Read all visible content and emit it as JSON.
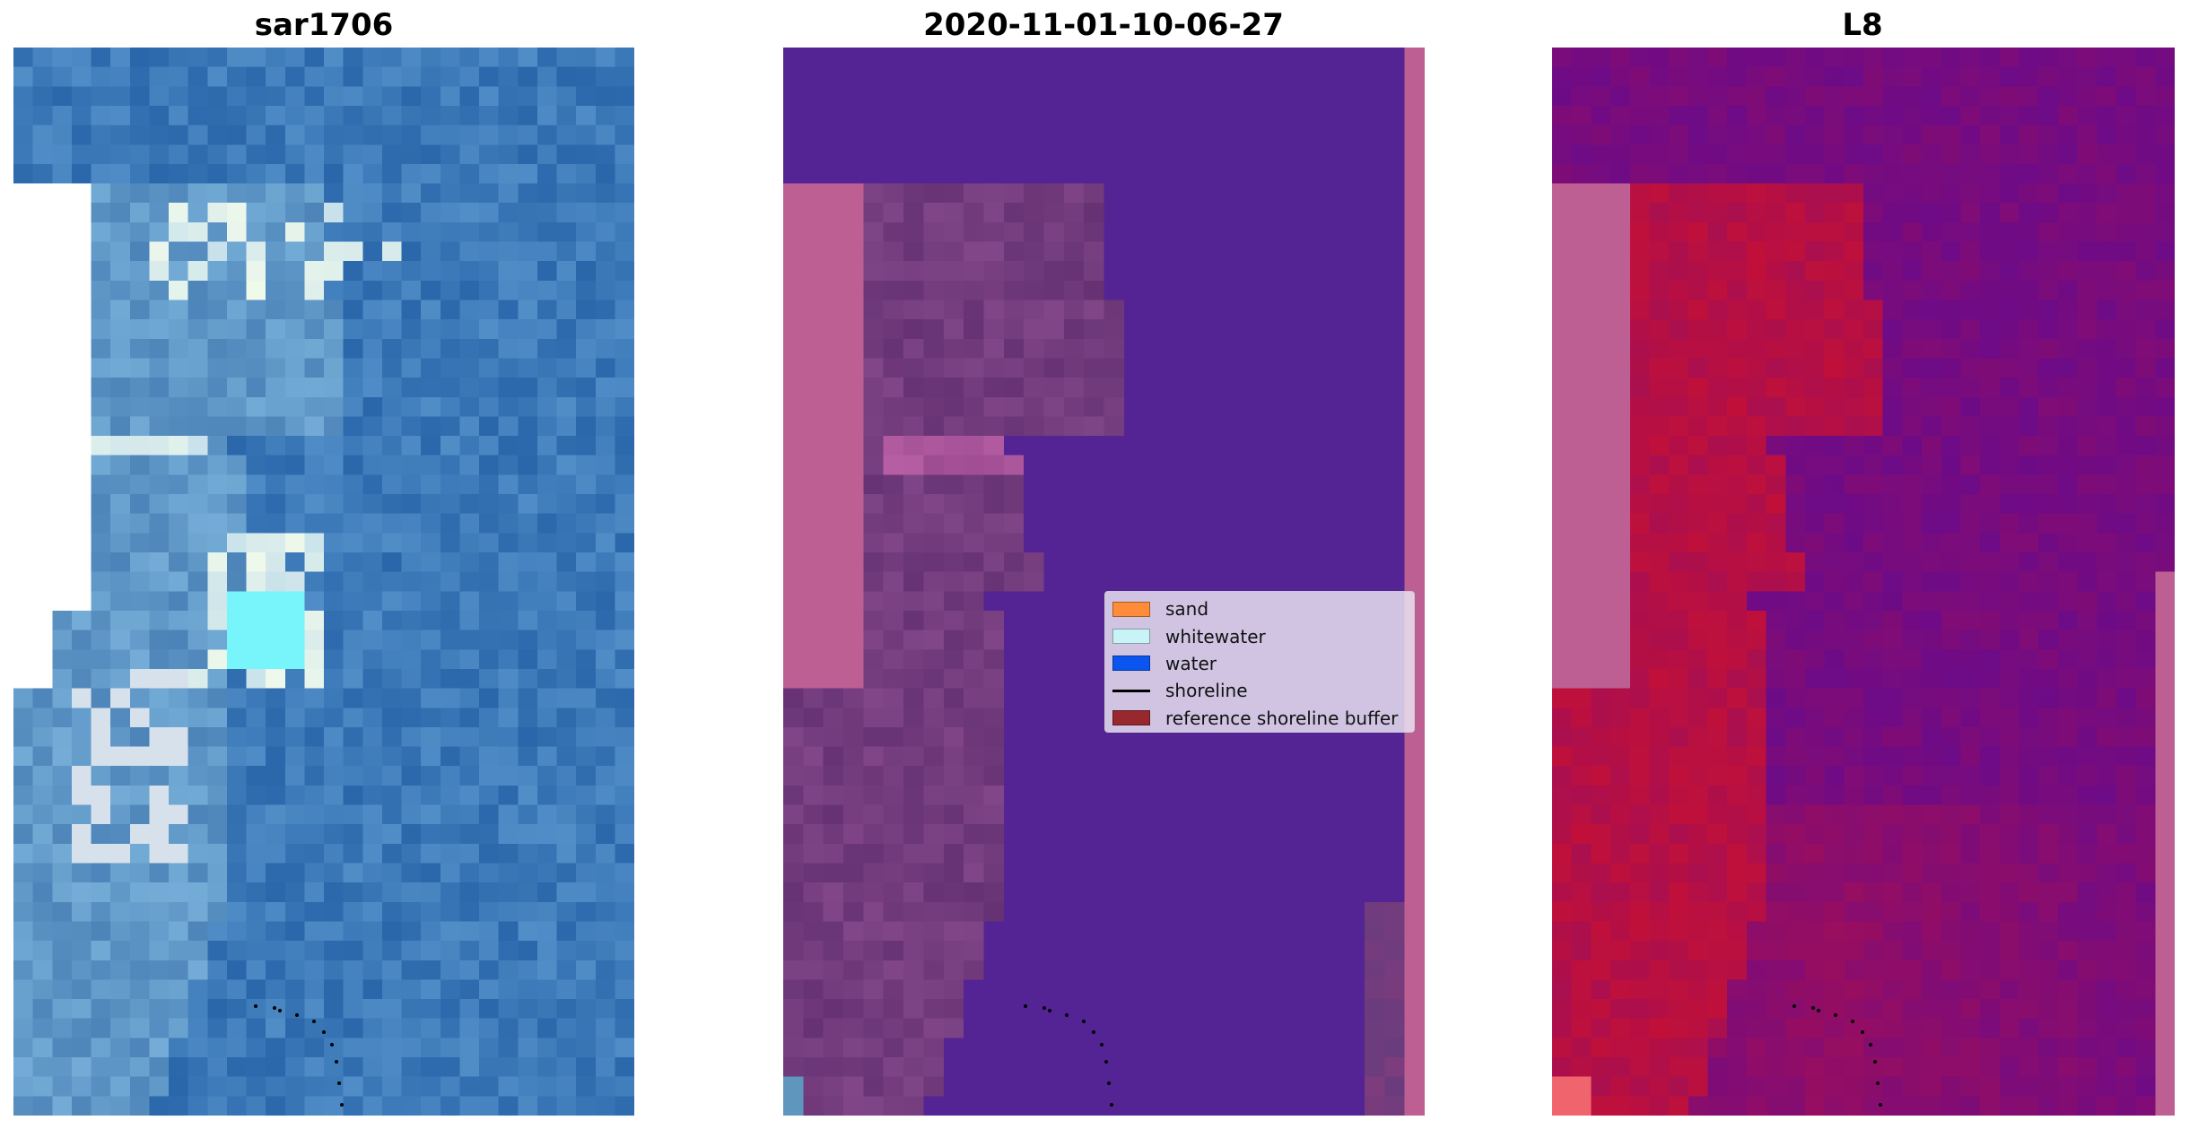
{
  "panels": [
    {
      "title": "sar1706"
    },
    {
      "title": "2020-11-01-10-06-27"
    },
    {
      "title": "L8"
    }
  ],
  "legend": {
    "items": [
      {
        "label": "sand",
        "color": "#ff8c3a",
        "kind": "patch"
      },
      {
        "label": "whitewater",
        "color": "#c9f4f7",
        "kind": "patch"
      },
      {
        "label": "water",
        "color": "#0a55ef",
        "kind": "patch"
      },
      {
        "label": "shoreline",
        "color": "#000000",
        "kind": "line"
      },
      {
        "label": "reference shoreline buffer",
        "color": "#96282e",
        "kind": "patch"
      }
    ]
  },
  "colors": {
    "rgb_base": "#3d7ab9",
    "classified_water": "#542495",
    "classified_land": "#733c7d",
    "reference_buffer": "#bd5f92",
    "mndwi_high": "#c0103a",
    "mndwi_low": "#5b0a98"
  }
}
